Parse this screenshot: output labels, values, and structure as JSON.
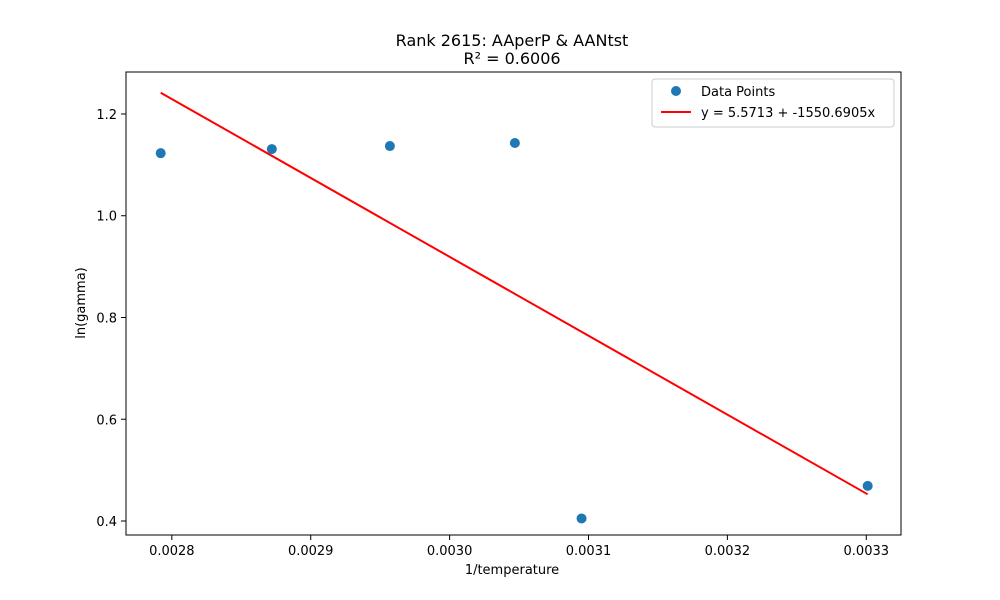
{
  "chart_data": {
    "type": "scatter",
    "title": "Rank 2615: AAperP & AANtst",
    "subtitle": "R² = 0.6006",
    "xlabel": "1/temperature",
    "ylabel": "ln(gamma)",
    "xlim": [
      0.002767,
      0.003325
    ],
    "ylim": [
      0.3725,
      1.2825
    ],
    "x_ticks": [
      0.0028,
      0.0029,
      0.003,
      0.0031,
      0.0032,
      0.0033
    ],
    "x_tick_labels": [
      "0.0028",
      "0.0029",
      "0.0030",
      "0.0031",
      "0.0032",
      "0.0033"
    ],
    "y_ticks": [
      0.4,
      0.6,
      0.8,
      1.0,
      1.2
    ],
    "y_tick_labels": [
      "0.4",
      "0.6",
      "0.8",
      "1.0",
      "1.2"
    ],
    "grid": false,
    "legend_position": "top-right",
    "series": [
      {
        "name": "Data Points",
        "kind": "scatter",
        "color": "#1f77b4",
        "x": [
          0.002792,
          0.002872,
          0.002957,
          0.003047,
          0.003095,
          0.003301
        ],
        "y": [
          1.123,
          1.131,
          1.137,
          1.143,
          0.405,
          0.469
        ]
      },
      {
        "name": "y = 5.5713 + -1550.6905x",
        "kind": "line",
        "color": "#ff0000",
        "intercept": 5.5713,
        "slope": -1550.6905,
        "x_range": [
          0.002792,
          0.003301
        ]
      }
    ]
  }
}
